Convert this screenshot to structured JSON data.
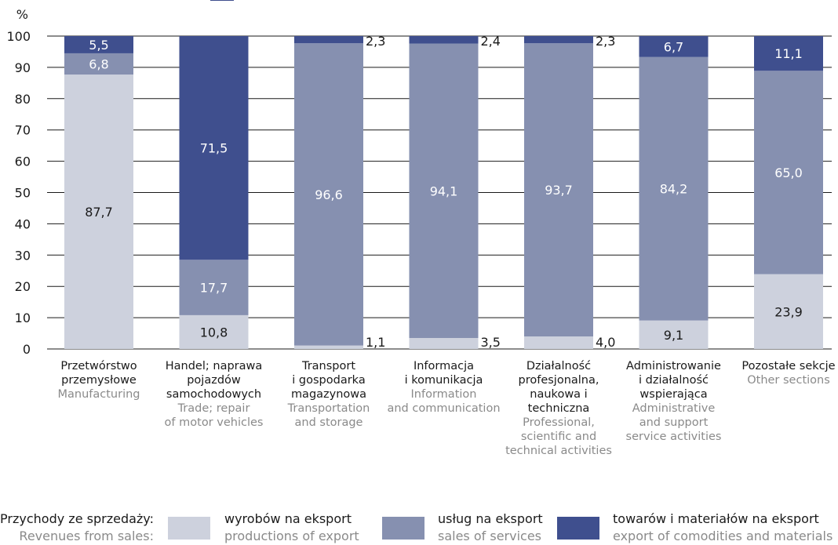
{
  "chart_data": {
    "type": "bar",
    "stacked": true,
    "y_unit": "%",
    "ylim": [
      0,
      100
    ],
    "y_ticks": [
      0,
      10,
      20,
      30,
      40,
      50,
      60,
      70,
      80,
      90,
      100
    ],
    "categories": [
      {
        "pl": [
          "Przetwórstwo",
          "przemysłowe"
        ],
        "en": [
          "Manufacturing"
        ]
      },
      {
        "pl": [
          "Handel; naprawa",
          "pojazdów",
          "samochodowych"
        ],
        "en": [
          "Trade; repair",
          "of motor vehicles"
        ]
      },
      {
        "pl": [
          "Transport",
          "i gospodarka",
          "magazynowa"
        ],
        "en": [
          "Transportation",
          "and storage"
        ]
      },
      {
        "pl": [
          "Informacja",
          "i komunikacja"
        ],
        "en": [
          "Information",
          "and communication"
        ]
      },
      {
        "pl": [
          "Działalność",
          "profesjonalna,",
          "naukowa i",
          "techniczna"
        ],
        "en": [
          "Professional,",
          "scientific and",
          "technical activities"
        ]
      },
      {
        "pl": [
          "Administrowanie",
          "i działalność",
          "wspierająca"
        ],
        "en": [
          "Administrative",
          "and support",
          "service activities"
        ]
      },
      {
        "pl": [
          "Pozostałe sekcje"
        ],
        "en": [
          "Other sections"
        ]
      }
    ],
    "series": [
      {
        "name_pl": "wyrobów na eksport",
        "name_en": "productions of export",
        "color": "#cdd1dd",
        "values": [
          87.7,
          10.8,
          1.1,
          3.5,
          4.0,
          9.1,
          23.9
        ],
        "labels": [
          "87,7",
          "10,8",
          "1,1",
          "3,5",
          "4,0",
          "9,1",
          "23,9"
        ]
      },
      {
        "name_pl": "usług na eksport",
        "name_en": "sales of services",
        "color": "#8690b0",
        "values": [
          6.8,
          17.7,
          96.6,
          94.1,
          93.7,
          84.2,
          65.0
        ],
        "labels": [
          "6,8",
          "17,7",
          "96,6",
          "94,1",
          "93,7",
          "84,2",
          "65,0"
        ]
      },
      {
        "name_pl": "towarów i materiałów na eksport",
        "name_en": "export of comodities and materials",
        "color": "#3f4f8e",
        "values": [
          5.5,
          71.5,
          2.3,
          2.4,
          2.3,
          6.7,
          11.1
        ],
        "labels": [
          "5,5",
          "71,5",
          "2,3",
          "2,4",
          "2,3",
          "6,7",
          "11,1"
        ]
      }
    ]
  },
  "legend": {
    "title_pl": "Przychody ze sprzedaży:",
    "title_en": "Revenues from sales:"
  }
}
